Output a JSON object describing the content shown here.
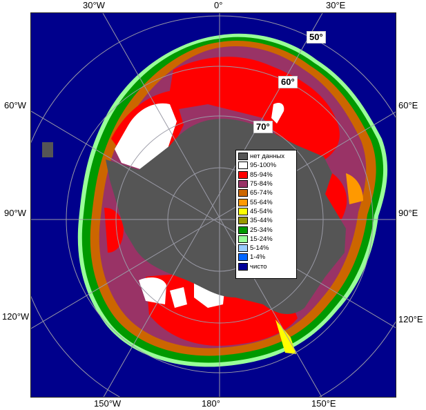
{
  "map": {
    "longitude_labels": {
      "top": [
        "30°W",
        "0°",
        "30°E"
      ],
      "left": [
        "60°W",
        "90°W",
        "120°W"
      ],
      "right": [
        "60°E",
        "90°E",
        "120°E"
      ],
      "bottom": [
        "150°W",
        "180°",
        "150°E"
      ]
    },
    "latitude_labels": [
      "50°",
      "60°",
      "70°"
    ],
    "legend": {
      "items": [
        {
          "label": "нет данных",
          "color": "#555555"
        },
        {
          "label": "95-100%",
          "color": "#ffffff"
        },
        {
          "label": "85-94%",
          "color": "#ff0000"
        },
        {
          "label": "75-84%",
          "color": "#993366"
        },
        {
          "label": "65-74%",
          "color": "#cc6600"
        },
        {
          "label": "55-64%",
          "color": "#ff9900"
        },
        {
          "label": "45-54%",
          "color": "#ffff00"
        },
        {
          "label": "35-44%",
          "color": "#999900"
        },
        {
          "label": "25-34%",
          "color": "#009900"
        },
        {
          "label": "15-24%",
          "color": "#99ff99"
        },
        {
          "label": "5-14%",
          "color": "#99ccff"
        },
        {
          "label": "1-4%",
          "color": "#0066ff"
        },
        {
          "label": "чисто",
          "color": "#000099"
        }
      ]
    },
    "colors": {
      "open_water": "#00008c",
      "land": "#555555",
      "grid": "#9a9aa6"
    }
  }
}
